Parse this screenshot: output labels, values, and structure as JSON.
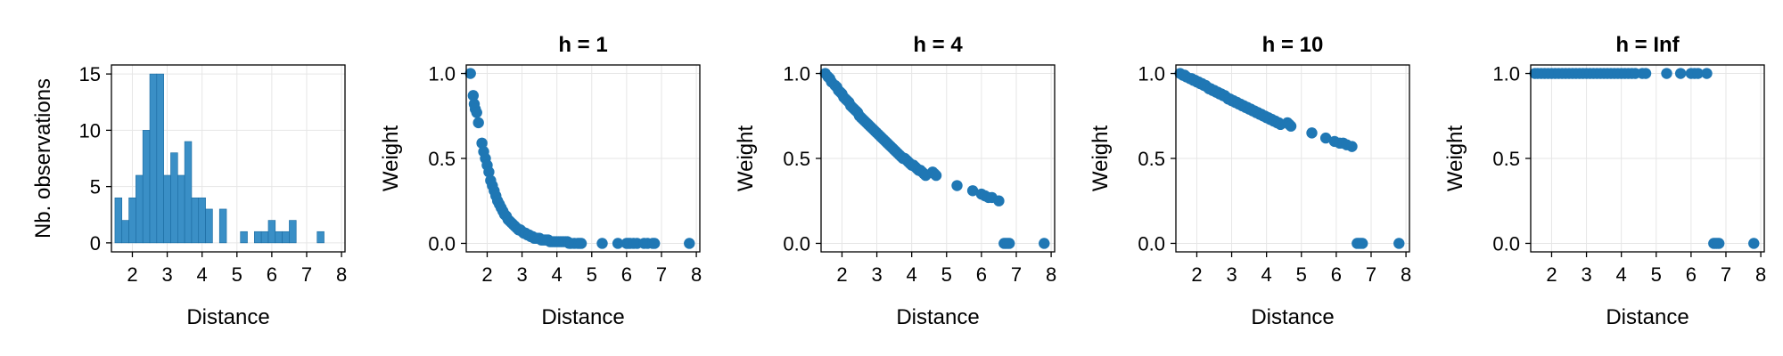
{
  "colors": {
    "marker": "#1f77b4",
    "bar": "#3a8fc6",
    "bar_edge": "#1a6aa0",
    "grid": "#e6e6e6",
    "frame": "#000000"
  },
  "chart_data": [
    {
      "type": "bar",
      "title": "",
      "xlabel": "Distance",
      "ylabel": "Nb. observations",
      "xlim": [
        1.4,
        8.1
      ],
      "ylim": [
        -0.8,
        15.8
      ],
      "xticks": [
        2,
        3,
        4,
        5,
        6,
        7,
        8
      ],
      "yticks": [
        0,
        5,
        10,
        15
      ],
      "bin_edges": [
        1.5,
        1.7,
        1.9,
        2.1,
        2.3,
        2.5,
        2.7,
        2.9,
        3.1,
        3.3,
        3.5,
        3.7,
        3.9,
        4.1,
        4.3,
        4.5,
        4.7,
        4.9,
        5.1,
        5.3,
        5.5,
        5.7,
        5.9,
        6.1,
        6.3,
        6.5,
        6.7,
        6.9,
        7.1,
        7.3,
        7.5,
        7.7,
        7.9
      ],
      "values": [
        4,
        2,
        4,
        6,
        10,
        15,
        15,
        6,
        8,
        6,
        9,
        4,
        4,
        3,
        0,
        3,
        0,
        0,
        1,
        0,
        1,
        1,
        2,
        1,
        1,
        2,
        0,
        0,
        0,
        1,
        0,
        0
      ]
    },
    {
      "type": "scatter",
      "title": "h = 1",
      "xlabel": "Distance",
      "ylabel": "Weight",
      "h": 1,
      "xlim": [
        1.4,
        8.1
      ],
      "ylim": [
        -0.05,
        1.05
      ],
      "xticks": [
        2,
        3,
        4,
        5,
        6,
        7,
        8
      ],
      "yticks": [
        0.0,
        0.5,
        1.0
      ],
      "ytick_labels": [
        "0.0",
        "0.5",
        "1.0"
      ],
      "x": [
        1.52,
        1.6,
        1.63,
        1.66,
        1.7,
        1.75,
        1.85,
        1.9,
        1.95,
        2.0,
        2.05,
        2.1,
        2.15,
        2.2,
        2.25,
        2.3,
        2.35,
        2.4,
        2.45,
        2.5,
        2.55,
        2.6,
        2.65,
        2.7,
        2.75,
        2.8,
        2.85,
        2.9,
        2.95,
        3.0,
        3.05,
        3.1,
        3.15,
        3.2,
        3.25,
        3.3,
        3.35,
        3.4,
        3.45,
        3.5,
        3.55,
        3.6,
        3.65,
        3.7,
        3.75,
        3.8,
        3.85,
        3.9,
        3.95,
        4.0,
        4.05,
        4.1,
        4.15,
        4.2,
        4.25,
        4.3,
        4.35,
        4.4,
        4.5,
        4.6,
        4.65,
        4.7,
        5.3,
        5.75,
        6.0,
        6.05,
        6.1,
        6.2,
        6.3,
        6.5,
        6.6,
        6.75,
        6.8,
        7.8
      ],
      "y": [
        1.0,
        0.87,
        0.82,
        0.79,
        0.77,
        0.71,
        0.59,
        0.54,
        0.5,
        0.46,
        0.42,
        0.37,
        0.34,
        0.31,
        0.28,
        0.25,
        0.23,
        0.21,
        0.19,
        0.17,
        0.16,
        0.14,
        0.13,
        0.12,
        0.11,
        0.1,
        0.09,
        0.08,
        0.08,
        0.07,
        0.06,
        0.06,
        0.05,
        0.05,
        0.04,
        0.04,
        0.03,
        0.03,
        0.03,
        0.03,
        0.02,
        0.02,
        0.02,
        0.02,
        0.02,
        0.01,
        0.01,
        0.01,
        0.01,
        0.01,
        0.01,
        0.01,
        0.01,
        0.01,
        0.01,
        0.01,
        0.0,
        0.0,
        0.0,
        0.0,
        0.0,
        0.0,
        0.0,
        0.0,
        0.0,
        0.0,
        0.0,
        0.0,
        0.0,
        0.0,
        0.0,
        0.0,
        0.0,
        0.0
      ]
    },
    {
      "type": "scatter",
      "title": "h = 4",
      "xlabel": "Distance",
      "ylabel": "Weight",
      "h": 4,
      "xlim": [
        1.4,
        8.1
      ],
      "ylim": [
        -0.05,
        1.05
      ],
      "xticks": [
        2,
        3,
        4,
        5,
        6,
        7,
        8
      ],
      "yticks": [
        0.0,
        0.5,
        1.0
      ],
      "ytick_labels": [
        "0.0",
        "0.5",
        "1.0"
      ],
      "x": [
        1.52,
        1.6,
        1.65,
        1.7,
        1.8,
        1.85,
        1.9,
        1.95,
        2.0,
        2.05,
        2.1,
        2.15,
        2.2,
        2.25,
        2.3,
        2.35,
        2.4,
        2.45,
        2.5,
        2.55,
        2.6,
        2.65,
        2.7,
        2.75,
        2.8,
        2.85,
        2.9,
        2.95,
        3.0,
        3.05,
        3.1,
        3.15,
        3.2,
        3.25,
        3.3,
        3.35,
        3.4,
        3.45,
        3.5,
        3.55,
        3.6,
        3.65,
        3.7,
        3.75,
        3.8,
        3.85,
        3.9,
        3.95,
        4.0,
        4.05,
        4.1,
        4.15,
        4.2,
        4.25,
        4.3,
        4.35,
        4.4,
        4.6,
        4.65,
        4.7,
        5.3,
        5.75,
        6.0,
        6.1,
        6.2,
        6.3,
        6.5,
        6.65,
        6.7,
        6.75,
        6.8,
        7.8
      ],
      "y": [
        1.0,
        0.98,
        0.97,
        0.95,
        0.93,
        0.92,
        0.9,
        0.89,
        0.88,
        0.86,
        0.85,
        0.84,
        0.83,
        0.81,
        0.8,
        0.79,
        0.78,
        0.77,
        0.75,
        0.74,
        0.73,
        0.72,
        0.71,
        0.7,
        0.69,
        0.68,
        0.67,
        0.66,
        0.65,
        0.64,
        0.63,
        0.62,
        0.61,
        0.6,
        0.59,
        0.58,
        0.57,
        0.56,
        0.55,
        0.54,
        0.53,
        0.52,
        0.51,
        0.5,
        0.5,
        0.49,
        0.48,
        0.47,
        0.46,
        0.46,
        0.45,
        0.44,
        0.43,
        0.43,
        0.42,
        0.41,
        0.4,
        0.42,
        0.41,
        0.4,
        0.34,
        0.31,
        0.29,
        0.28,
        0.27,
        0.27,
        0.25,
        0.0,
        0.0,
        0.0,
        0.0,
        0.0
      ]
    },
    {
      "type": "scatter",
      "title": "h = 10",
      "xlabel": "Distance",
      "ylabel": "Weight",
      "h": 10,
      "xlim": [
        1.4,
        8.1
      ],
      "ylim": [
        -0.05,
        1.05
      ],
      "xticks": [
        2,
        3,
        4,
        5,
        6,
        7,
        8
      ],
      "yticks": [
        0.0,
        0.5,
        1.0
      ],
      "ytick_labels": [
        "0.0",
        "0.5",
        "1.0"
      ],
      "x": [
        1.52,
        1.6,
        1.65,
        1.7,
        1.8,
        1.85,
        1.9,
        1.95,
        2.0,
        2.05,
        2.1,
        2.15,
        2.2,
        2.25,
        2.3,
        2.35,
        2.4,
        2.45,
        2.5,
        2.55,
        2.6,
        2.65,
        2.7,
        2.75,
        2.8,
        2.85,
        2.9,
        2.95,
        3.0,
        3.05,
        3.1,
        3.15,
        3.2,
        3.25,
        3.3,
        3.35,
        3.4,
        3.45,
        3.5,
        3.55,
        3.6,
        3.65,
        3.7,
        3.75,
        3.8,
        3.85,
        3.9,
        3.95,
        4.0,
        4.05,
        4.1,
        4.15,
        4.2,
        4.25,
        4.3,
        4.35,
        4.4,
        4.6,
        4.65,
        4.7,
        5.3,
        5.7,
        5.95,
        6.1,
        6.2,
        6.3,
        6.45,
        6.6,
        6.65,
        6.7,
        6.75,
        7.8
      ],
      "y": [
        1.0,
        0.99,
        0.99,
        0.98,
        0.97,
        0.97,
        0.96,
        0.96,
        0.95,
        0.95,
        0.94,
        0.94,
        0.93,
        0.93,
        0.92,
        0.91,
        0.91,
        0.9,
        0.9,
        0.89,
        0.89,
        0.88,
        0.88,
        0.87,
        0.87,
        0.86,
        0.85,
        0.85,
        0.84,
        0.84,
        0.83,
        0.83,
        0.82,
        0.82,
        0.81,
        0.81,
        0.8,
        0.8,
        0.79,
        0.79,
        0.78,
        0.78,
        0.77,
        0.77,
        0.76,
        0.76,
        0.75,
        0.75,
        0.74,
        0.74,
        0.73,
        0.73,
        0.72,
        0.72,
        0.71,
        0.71,
        0.7,
        0.71,
        0.7,
        0.69,
        0.65,
        0.62,
        0.6,
        0.59,
        0.59,
        0.58,
        0.57,
        0.0,
        0.0,
        0.0,
        0.0,
        0.0
      ]
    },
    {
      "type": "scatter",
      "title": "h = Inf",
      "xlabel": "Distance",
      "ylabel": "Weight",
      "h": "Inf",
      "xlim": [
        1.4,
        8.1
      ],
      "ylim": [
        -0.05,
        1.05
      ],
      "xticks": [
        2,
        3,
        4,
        5,
        6,
        7,
        8
      ],
      "yticks": [
        0.0,
        0.5,
        1.0
      ],
      "ytick_labels": [
        "0.0",
        "0.5",
        "1.0"
      ],
      "x": [
        1.52,
        1.6,
        1.7,
        1.8,
        1.9,
        2.0,
        2.1,
        2.2,
        2.3,
        2.4,
        2.5,
        2.6,
        2.7,
        2.8,
        2.9,
        3.0,
        3.1,
        3.2,
        3.3,
        3.4,
        3.5,
        3.6,
        3.7,
        3.8,
        3.9,
        4.0,
        4.1,
        4.2,
        4.3,
        4.4,
        4.6,
        4.7,
        5.3,
        5.7,
        6.0,
        6.1,
        6.2,
        6.45,
        6.65,
        6.7,
        6.75,
        6.8,
        7.8
      ],
      "y": [
        1.0,
        1.0,
        1.0,
        1.0,
        1.0,
        1.0,
        1.0,
        1.0,
        1.0,
        1.0,
        1.0,
        1.0,
        1.0,
        1.0,
        1.0,
        1.0,
        1.0,
        1.0,
        1.0,
        1.0,
        1.0,
        1.0,
        1.0,
        1.0,
        1.0,
        1.0,
        1.0,
        1.0,
        1.0,
        1.0,
        1.0,
        1.0,
        1.0,
        1.0,
        1.0,
        1.0,
        1.0,
        1.0,
        0.0,
        0.0,
        0.0,
        0.0,
        0.0
      ]
    }
  ]
}
